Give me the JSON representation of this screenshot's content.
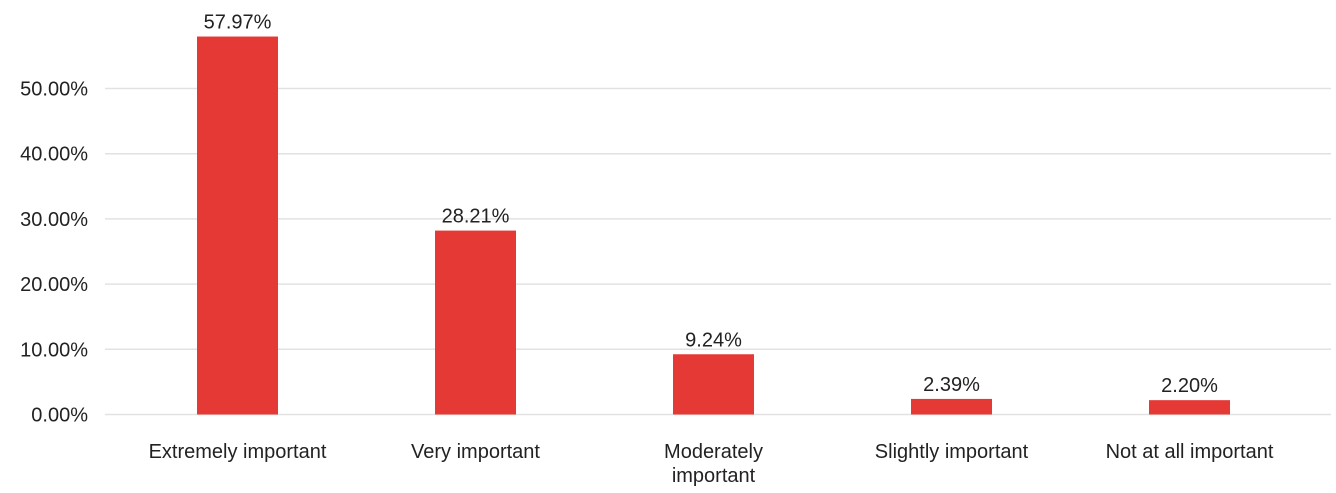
{
  "chart_data": {
    "type": "bar",
    "categories": [
      "Extremely important",
      "Very important",
      "Moderately important",
      "Slightly important",
      "Not at all important"
    ],
    "series": [
      {
        "values": [
          57.97,
          28.21,
          9.24,
          2.39,
          2.2
        ],
        "labels": [
          "57.97%",
          "28.21%",
          "9.24%",
          "2.39%",
          "2.20%"
        ]
      }
    ],
    "ylim": [
      0,
      60
    ],
    "yticks": [
      0,
      10,
      20,
      30,
      40,
      50
    ],
    "ytick_labels": [
      "0.00%",
      "10.00%",
      "20.00%",
      "30.00%",
      "40.00%",
      "50.00%"
    ],
    "grid": true,
    "bar_color": "#e53935"
  }
}
